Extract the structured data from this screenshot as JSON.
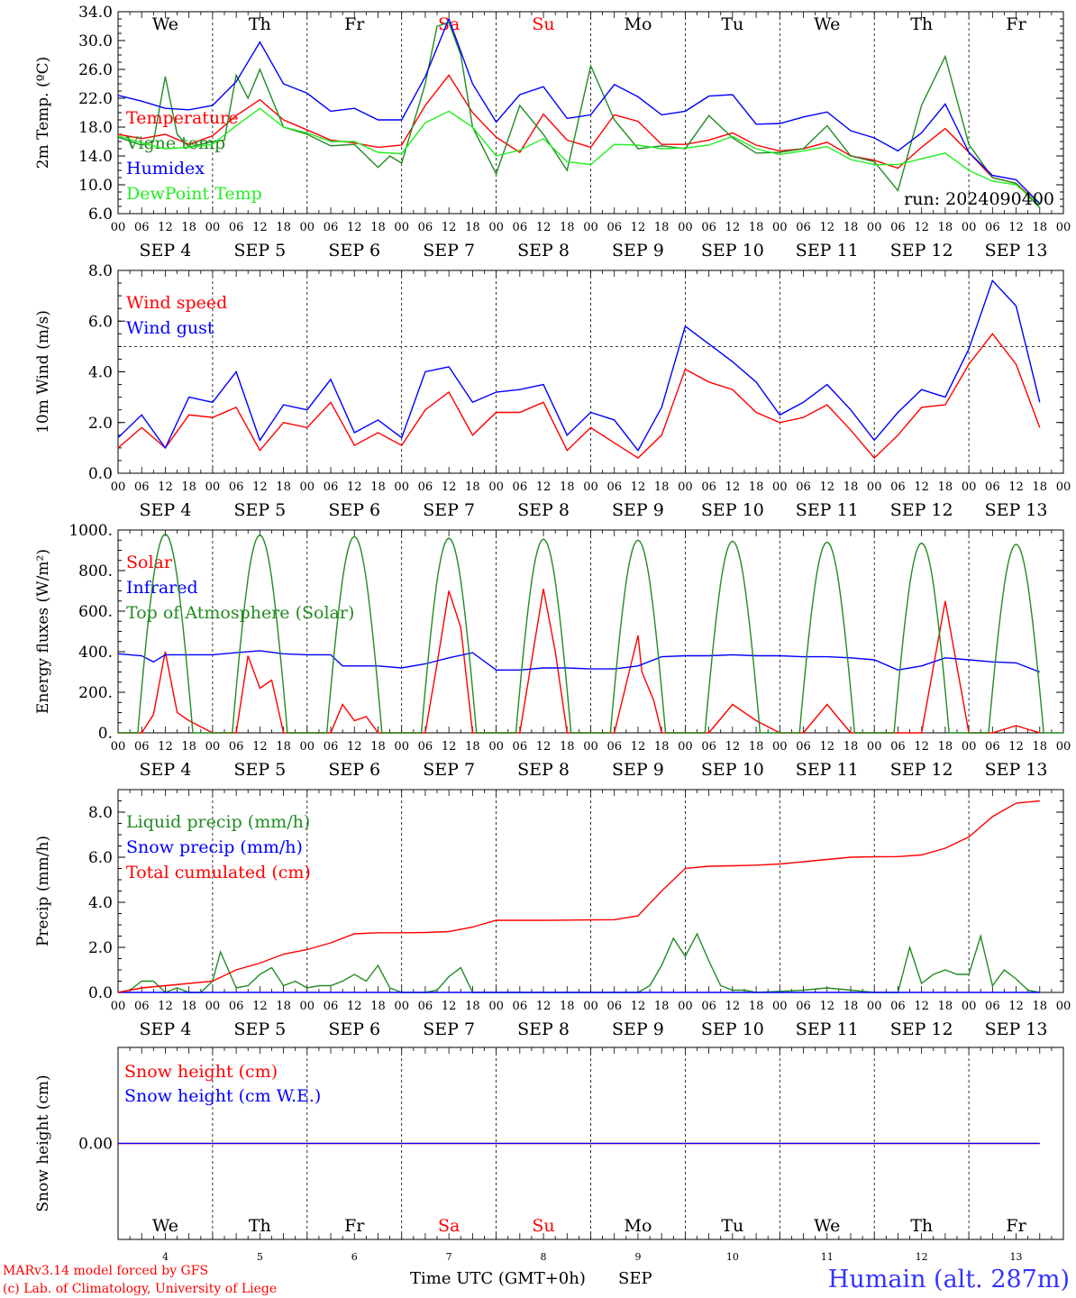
{
  "footer": {
    "credit_line1": "MARv3.14 model forced by GFS",
    "credit_line2": "(c) Lab. of Climatology, University of Liege",
    "xlabel": "Time UTC (GMT+0h)",
    "month": "SEP",
    "station": "Humain (alt. 287m)"
  },
  "days": {
    "weekdays": [
      "We",
      "Th",
      "Fr",
      "Sa",
      "Su",
      "Mo",
      "Tu",
      "We",
      "Th",
      "Fr"
    ],
    "weekday_colors": [
      "#000000",
      "#000000",
      "#000000",
      "#ff0000",
      "#ff0000",
      "#000000",
      "#000000",
      "#000000",
      "#000000",
      "#000000"
    ],
    "dates": [
      "4",
      "5",
      "6",
      "7",
      "8",
      "9",
      "10",
      "11",
      "12",
      "13"
    ],
    "date_labels": [
      "SEP  4",
      "SEP  5",
      "SEP  6",
      "SEP  7",
      "SEP  8",
      "SEP  9",
      "SEP 10",
      "SEP 11",
      "SEP 12",
      "SEP 13"
    ],
    "hour_ticks": [
      "00",
      "06",
      "12",
      "18"
    ],
    "final_tick": "00"
  },
  "colors": {
    "red": "#ff0000",
    "green": "#228b22",
    "blue": "#0000ff",
    "lightgreen": "#22ee22",
    "purple": "#7b3fa0"
  },
  "chart_data": [
    {
      "type": "line",
      "ylabel": "2m Temp. (ºC)",
      "ylim": [
        6,
        34
      ],
      "yticks": [
        "6.0",
        "10.0",
        "14.0",
        "18.0",
        "22.0",
        "26.0",
        "30.0",
        "34.0"
      ],
      "annotation": "run: 2024090400",
      "x_unit": "hours from Sep 4 00 UTC",
      "series": [
        {
          "name": "Temperature",
          "color": "#ff0000",
          "x": [
            0,
            6,
            12,
            18,
            24,
            30,
            36,
            42,
            48,
            54,
            60,
            66,
            72,
            78,
            84,
            90,
            96,
            102,
            108,
            114,
            120,
            126,
            132,
            138,
            144,
            150,
            156,
            162,
            168,
            174,
            180,
            186,
            192,
            198,
            204,
            210,
            216,
            222,
            228,
            234
          ],
          "y": [
            17,
            16.4,
            17,
            15.6,
            16.8,
            19.6,
            21.8,
            19,
            17.6,
            16.2,
            15.8,
            15.2,
            15.5,
            21,
            25.2,
            20,
            16.6,
            14.5,
            19.8,
            16.2,
            15.2,
            19.7,
            18.8,
            15.6,
            15.6,
            16.2,
            17.2,
            15.5,
            14.7,
            15,
            15.9,
            14,
            13.4,
            12.3,
            15.2,
            17.8,
            14.5,
            11,
            10.2,
            7.2
          ]
        },
        {
          "name": "Vigne temp",
          "color": "#228b22",
          "x": [
            0,
            6,
            9,
            12,
            15,
            18,
            24,
            27,
            30,
            33,
            36,
            42,
            48,
            54,
            60,
            66,
            69,
            72,
            78,
            81,
            84,
            87,
            90,
            96,
            102,
            108,
            114,
            120,
            126,
            132,
            138,
            144,
            150,
            156,
            162,
            168,
            174,
            180,
            186,
            192,
            198,
            204,
            210,
            216,
            222,
            228,
            234
          ],
          "y": [
            16.6,
            15.5,
            16,
            25,
            17,
            15.2,
            16,
            16.2,
            25.2,
            22,
            26,
            18,
            17,
            15.4,
            15.6,
            12.4,
            14,
            13,
            24,
            32,
            32.5,
            28,
            18,
            11.5,
            21,
            17,
            12,
            26.5,
            19,
            15,
            15.4,
            15,
            19.6,
            16.5,
            14.4,
            14.5,
            15,
            18.2,
            14,
            13.2,
            9.2,
            21,
            27.8,
            15.6,
            11,
            10.2,
            6.8
          ]
        },
        {
          "name": "Humidex",
          "color": "#0000ff",
          "x": [
            0,
            6,
            12,
            18,
            24,
            30,
            36,
            42,
            48,
            54,
            60,
            66,
            72,
            78,
            84,
            90,
            96,
            102,
            108,
            114,
            120,
            126,
            132,
            138,
            144,
            150,
            156,
            162,
            168,
            174,
            180,
            186,
            192,
            198,
            204,
            210,
            216,
            222,
            228,
            234
          ],
          "y": [
            22.4,
            21.6,
            20.6,
            20.4,
            21,
            24.3,
            29.8,
            24,
            22.7,
            20.2,
            20.6,
            19,
            19,
            25,
            33,
            24,
            18.7,
            22.5,
            23.6,
            19.2,
            19.7,
            23.9,
            22.2,
            19.7,
            20.2,
            22.3,
            22.5,
            18.4,
            18.5,
            19.4,
            20.1,
            17.5,
            16.5,
            14.7,
            17.2,
            21.2,
            14.5,
            11.3,
            10.7,
            7.4
          ]
        },
        {
          "name": "DewPoint Temp",
          "color": "#22ee22",
          "x": [
            0,
            6,
            12,
            18,
            24,
            30,
            36,
            42,
            48,
            54,
            60,
            66,
            72,
            78,
            84,
            90,
            96,
            102,
            108,
            114,
            120,
            126,
            132,
            138,
            144,
            150,
            156,
            162,
            168,
            174,
            180,
            186,
            192,
            198,
            204,
            210,
            216,
            222,
            228,
            234
          ],
          "y": [
            16.8,
            15.8,
            15,
            15.2,
            15.6,
            18.2,
            20.6,
            18,
            17.2,
            16,
            16,
            14.5,
            14.3,
            18.6,
            20.2,
            18,
            14,
            14.8,
            16.4,
            13.2,
            12.8,
            15.6,
            15.5,
            15,
            15.1,
            15.5,
            16.7,
            15,
            14.2,
            14.7,
            15.3,
            13.5,
            12.8,
            12.8,
            13.6,
            14.4,
            12,
            10.5,
            10,
            7.2
          ]
        }
      ]
    },
    {
      "type": "line",
      "ylabel": "10m Wind (m/s)",
      "ylim": [
        0,
        8
      ],
      "yticks": [
        "0.0",
        "2.0",
        "4.0",
        "6.0",
        "8.0"
      ],
      "reference_line": 5,
      "series": [
        {
          "name": "Wind speed",
          "color": "#ff0000",
          "x": [
            0,
            6,
            12,
            18,
            24,
            30,
            36,
            42,
            48,
            54,
            60,
            66,
            72,
            78,
            84,
            90,
            96,
            102,
            108,
            114,
            120,
            126,
            132,
            138,
            144,
            150,
            156,
            162,
            168,
            174,
            180,
            186,
            192,
            198,
            204,
            210,
            216,
            222,
            228,
            234
          ],
          "y": [
            1.0,
            1.8,
            1.0,
            2.3,
            2.2,
            2.6,
            0.9,
            2.0,
            1.8,
            2.8,
            1.1,
            1.6,
            1.1,
            2.5,
            3.2,
            1.5,
            2.4,
            2.4,
            2.8,
            0.9,
            1.8,
            1.2,
            0.6,
            1.5,
            4.1,
            3.6,
            3.3,
            2.4,
            2.0,
            2.2,
            2.7,
            1.7,
            0.6,
            1.5,
            2.6,
            2.7,
            4.3,
            5.5,
            4.3,
            1.8
          ]
        },
        {
          "name": "Wind gust",
          "color": "#0000ff",
          "x": [
            0,
            6,
            12,
            18,
            24,
            30,
            36,
            42,
            48,
            54,
            60,
            66,
            72,
            78,
            84,
            90,
            96,
            102,
            108,
            114,
            120,
            126,
            132,
            138,
            144,
            150,
            156,
            162,
            168,
            174,
            180,
            186,
            192,
            198,
            204,
            210,
            216,
            222,
            228,
            234
          ],
          "y": [
            1.4,
            2.3,
            1.0,
            3.0,
            2.8,
            4.0,
            1.3,
            2.7,
            2.5,
            3.7,
            1.6,
            2.1,
            1.4,
            4.0,
            4.2,
            2.8,
            3.2,
            3.3,
            3.5,
            1.5,
            2.4,
            2.1,
            0.9,
            2.6,
            5.8,
            5.1,
            4.4,
            3.6,
            2.3,
            2.8,
            3.5,
            2.5,
            1.3,
            2.4,
            3.3,
            3.0,
            4.9,
            7.6,
            6.6,
            2.8
          ]
        }
      ]
    },
    {
      "type": "line",
      "ylabel": "Energy fluxes (W/m²)",
      "ylim": [
        0,
        1000
      ],
      "yticks": [
        "0.",
        "200.",
        "400.",
        "600.",
        "800.",
        "1000."
      ],
      "series": [
        {
          "name": "Solar",
          "color": "#ff0000",
          "peaks": [
            400,
            375,
            140,
            700,
            710,
            480,
            140,
            140,
            650,
            35
          ],
          "x": [
            0,
            6,
            9,
            12,
            15,
            18,
            24,
            30,
            33,
            36,
            39,
            42,
            48,
            54,
            57,
            60,
            63,
            66,
            72,
            78,
            81,
            84,
            87,
            90,
            96,
            102,
            108,
            111,
            114,
            120,
            126,
            132,
            133,
            136,
            138,
            144,
            150,
            156,
            162,
            168,
            174,
            180,
            186,
            192,
            198,
            204,
            210,
            216,
            222,
            228,
            234
          ],
          "y": [
            0,
            0,
            90,
            400,
            100,
            60,
            0,
            0,
            380,
            220,
            260,
            0,
            0,
            0,
            140,
            60,
            80,
            0,
            0,
            0,
            340,
            700,
            520,
            0,
            0,
            0,
            710,
            400,
            0,
            0,
            0,
            480,
            300,
            160,
            0,
            0,
            0,
            140,
            60,
            0,
            0,
            140,
            0,
            0,
            0,
            0,
            650,
            0,
            0,
            35,
            0
          ]
        },
        {
          "name": "Infrared",
          "color": "#0000ff",
          "x": [
            0,
            6,
            9,
            12,
            18,
            24,
            30,
            36,
            42,
            48,
            54,
            57,
            60,
            66,
            72,
            78,
            84,
            90,
            96,
            102,
            108,
            114,
            120,
            126,
            132,
            138,
            144,
            150,
            156,
            162,
            168,
            174,
            180,
            186,
            192,
            198,
            204,
            210,
            216,
            222,
            228,
            234
          ],
          "y": [
            390,
            380,
            350,
            385,
            385,
            385,
            395,
            405,
            390,
            385,
            385,
            330,
            330,
            330,
            320,
            340,
            370,
            395,
            310,
            310,
            320,
            320,
            315,
            315,
            330,
            375,
            380,
            380,
            385,
            380,
            380,
            375,
            375,
            370,
            360,
            310,
            330,
            370,
            360,
            350,
            345,
            300
          ]
        },
        {
          "name": "Top of Atmosphere (Solar)",
          "color": "#228b22",
          "daily_peak": [
            980,
            975,
            968,
            960,
            955,
            950,
            945,
            940,
            935,
            930
          ]
        }
      ]
    },
    {
      "type": "line",
      "ylabel": "Precip (mm/h)",
      "ylim": [
        0,
        9
      ],
      "yticks": [
        "0.0",
        "2.0",
        "4.0",
        "6.0",
        "8.0"
      ],
      "series": [
        {
          "name": "Liquid precip (mm/h)",
          "color": "#228b22",
          "x": [
            0,
            3,
            6,
            9,
            12,
            15,
            18,
            21,
            24,
            26,
            28,
            30,
            33,
            36,
            39,
            42,
            45,
            48,
            51,
            54,
            57,
            60,
            63,
            66,
            69,
            72,
            75,
            78,
            81,
            84,
            87,
            90,
            96,
            108,
            120,
            132,
            135,
            138,
            141,
            144,
            147,
            150,
            153,
            156,
            159,
            162,
            168,
            174,
            180,
            186,
            192,
            198,
            201,
            204,
            207,
            210,
            213,
            216,
            219,
            222,
            225,
            228,
            231,
            234
          ],
          "y": [
            0,
            0.1,
            0.5,
            0.5,
            0,
            0.2,
            0,
            0,
            0.5,
            1.8,
            1.0,
            0.2,
            0.3,
            0.8,
            1.1,
            0.3,
            0.5,
            0.2,
            0.3,
            0.3,
            0.5,
            0.8,
            0.5,
            1.2,
            0.2,
            0,
            0,
            0,
            0.1,
            0.7,
            1.1,
            0,
            0,
            0,
            0,
            0,
            0.3,
            1.2,
            2.4,
            1.6,
            2.6,
            1.4,
            0.3,
            0.1,
            0.1,
            0,
            0.05,
            0.1,
            0.2,
            0.1,
            0,
            0,
            2.0,
            0.4,
            0.8,
            1.0,
            0.8,
            0.8,
            2.5,
            0.3,
            1.0,
            0.6,
            0.1,
            0
          ]
        },
        {
          "name": "Snow precip (mm/h)",
          "color": "#0000ff",
          "x": [
            0,
            234
          ],
          "y": [
            0,
            0
          ]
        },
        {
          "name": "Total cumulated (cm)",
          "color": "#ff0000",
          "x": [
            0,
            6,
            12,
            18,
            24,
            30,
            36,
            42,
            48,
            54,
            60,
            66,
            72,
            78,
            84,
            90,
            96,
            102,
            108,
            114,
            120,
            126,
            132,
            138,
            144,
            150,
            156,
            162,
            168,
            174,
            180,
            186,
            192,
            198,
            204,
            210,
            216,
            222,
            228,
            234
          ],
          "y": [
            0,
            0.2,
            0.3,
            0.4,
            0.5,
            1.0,
            1.3,
            1.7,
            1.9,
            2.2,
            2.6,
            2.65,
            2.65,
            2.66,
            2.7,
            2.9,
            3.2,
            3.2,
            3.2,
            3.21,
            3.22,
            3.23,
            3.4,
            4.5,
            5.5,
            5.6,
            5.62,
            5.65,
            5.7,
            5.8,
            5.9,
            6.0,
            6.02,
            6.03,
            6.1,
            6.4,
            6.9,
            7.8,
            8.4,
            8.5
          ]
        }
      ]
    },
    {
      "type": "line",
      "ylabel": "Snow height (cm)",
      "ylim": [
        -1,
        1
      ],
      "yticks": [
        "0.00"
      ],
      "series": [
        {
          "name": "Snow height (cm)",
          "color": "#ff0000",
          "x": [
            0,
            234
          ],
          "y": [
            0,
            0
          ]
        },
        {
          "name": "Snow height (cm W.E.)",
          "color": "#0000ff",
          "x": [
            0,
            234
          ],
          "y": [
            0,
            0
          ]
        }
      ]
    }
  ]
}
